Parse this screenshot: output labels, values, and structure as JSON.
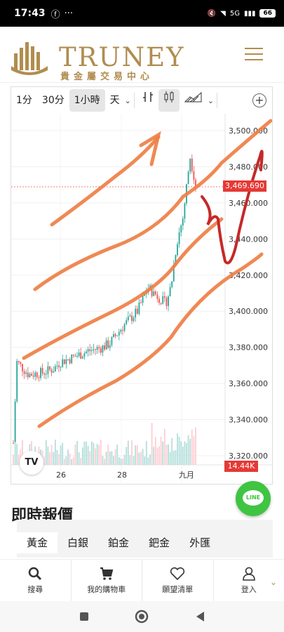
{
  "statusbar": {
    "time": "17:43",
    "battery": "66",
    "signal": "5G"
  },
  "header": {
    "brand": "TRUNEY",
    "subtitle": "貴金屬交易中心"
  },
  "toolbar": {
    "intervals": [
      "1分",
      "30分",
      "1小時",
      "天"
    ],
    "active_interval": "1小時"
  },
  "chart_data": {
    "type": "candlestick",
    "y_ticks": [
      "3,500.000",
      "3,480.000",
      "3,460.000",
      "3,440.000",
      "3,420.000",
      "3,400.000",
      "3,380.000",
      "3,360.000",
      "3,340.000",
      "3,320.000"
    ],
    "x_ticks": [
      "26",
      "28",
      "九月"
    ],
    "last_price": "3,469.690",
    "volume_label": "14.44K",
    "ylim": [
      3310,
      3510
    ]
  },
  "section": {
    "title": "即時報價"
  },
  "quote_tabs": [
    "黃金",
    "白銀",
    "鉑金",
    "鈀金",
    "外匯"
  ],
  "bottom_nav": [
    {
      "label": "搜尋",
      "icon": "search-icon"
    },
    {
      "label": "我的購物車",
      "icon": "cart-icon"
    },
    {
      "label": "願望清單",
      "icon": "heart-icon"
    },
    {
      "label": "登入",
      "icon": "user-icon"
    }
  ],
  "line_button": {
    "label": "LINE"
  },
  "colors": {
    "brand": "#b08d4f",
    "up": "#26a69a",
    "down": "#ef5350",
    "annotation_orange": "#ee7f45",
    "annotation_red": "#c62828"
  }
}
